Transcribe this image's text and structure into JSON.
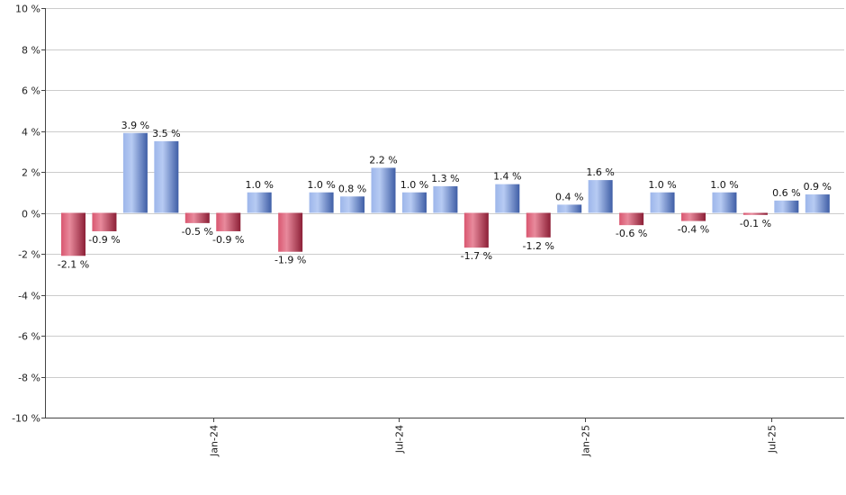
{
  "chart_data": {
    "type": "bar",
    "title": "",
    "xlabel": "",
    "ylabel": "",
    "ylim": [
      -10,
      10
    ],
    "y_ticks": [
      10,
      8,
      6,
      4,
      2,
      0,
      -2,
      -4,
      -6,
      -8,
      -10
    ],
    "y_tick_suffix": " %",
    "grid": true,
    "x_tick_labels": [
      {
        "label": "Jan-24",
        "index": 4.5
      },
      {
        "label": "Jul-24",
        "index": 10.5
      },
      {
        "label": "Jan-25",
        "index": 16.5
      },
      {
        "label": "Jul-25",
        "index": 22.5
      }
    ],
    "values": [
      -2.1,
      -0.9,
      3.9,
      3.5,
      -0.5,
      -0.9,
      1.0,
      -1.9,
      1.0,
      0.8,
      2.2,
      1.0,
      1.3,
      -1.7,
      1.4,
      -1.2,
      0.4,
      1.6,
      -0.6,
      1.0,
      -0.4,
      1.0,
      -0.1,
      0.6,
      0.9
    ],
    "data_labels": [
      "-2.1 %",
      "-0.9 %",
      "3.9 %",
      "3.5 %",
      "-0.5 %",
      "-0.9 %",
      "1.0 %",
      "-1.9 %",
      "1.0 %",
      "0.8 %",
      "2.2 %",
      "1.0 %",
      "1.3 %",
      "-1.7 %",
      "1.4 %",
      "-1.2 %",
      "0.4 %",
      "1.6 %",
      "-0.6 %",
      "1.0 %",
      "-0.4 %",
      "1.0 %",
      "-0.1 %",
      "0.6 %",
      "0.9 %"
    ],
    "colors": {
      "positive": "#6a8fd8",
      "positive_light": "#b3c8f2",
      "positive_dark": "#3f5ea6",
      "negative": "#c23b55",
      "negative_light": "#e88a9c",
      "negative_dark": "#8c1f36",
      "grid": "#cccccc",
      "axis": "#444444"
    }
  }
}
